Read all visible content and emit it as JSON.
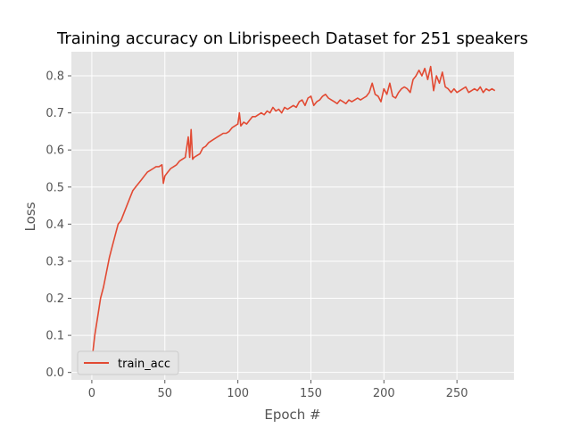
{
  "chart_data": {
    "type": "line",
    "title": "Training accuracy on Librispeech Dataset for 251 speakers",
    "xlabel": "Epoch #",
    "ylabel": "Loss",
    "xlim": [
      -14,
      289
    ],
    "ylim": [
      -0.02,
      0.865
    ],
    "xticks": [
      0,
      50,
      100,
      150,
      200,
      250
    ],
    "yticks": [
      0.0,
      0.1,
      0.2,
      0.3,
      0.4,
      0.5,
      0.6,
      0.7,
      0.8
    ],
    "ytick_labels": [
      "0.0",
      "0.1",
      "0.2",
      "0.3",
      "0.4",
      "0.5",
      "0.6",
      "0.7",
      "0.8"
    ],
    "grid": true,
    "legend_position": "lower-left",
    "colors": {
      "train_acc": "#e24a33",
      "background": "#e5e5e5",
      "grid": "#ffffff"
    },
    "series": [
      {
        "name": "train_acc",
        "x": [
          0,
          2,
          4,
          6,
          8,
          10,
          12,
          14,
          16,
          18,
          20,
          22,
          24,
          26,
          28,
          30,
          32,
          34,
          36,
          38,
          40,
          42,
          44,
          46,
          48,
          49,
          50,
          52,
          54,
          56,
          58,
          60,
          62,
          64,
          66,
          67,
          68,
          69,
          70,
          72,
          74,
          76,
          78,
          80,
          82,
          84,
          86,
          88,
          90,
          92,
          94,
          96,
          98,
          100,
          101,
          102,
          104,
          106,
          108,
          110,
          112,
          114,
          116,
          118,
          120,
          122,
          124,
          126,
          128,
          130,
          132,
          134,
          136,
          138,
          140,
          142,
          144,
          146,
          148,
          150,
          152,
          154,
          156,
          158,
          160,
          162,
          164,
          166,
          168,
          170,
          172,
          174,
          176,
          178,
          180,
          182,
          184,
          186,
          188,
          190,
          192,
          194,
          196,
          198,
          200,
          202,
          204,
          206,
          208,
          210,
          212,
          214,
          216,
          218,
          220,
          222,
          224,
          226,
          228,
          230,
          232,
          234,
          236,
          238,
          240,
          242,
          244,
          246,
          248,
          250,
          252,
          254,
          256,
          258,
          260,
          262,
          264,
          266,
          268,
          270,
          272,
          274,
          276
        ],
        "values": [
          0.03,
          0.1,
          0.15,
          0.2,
          0.23,
          0.27,
          0.31,
          0.34,
          0.37,
          0.4,
          0.41,
          0.43,
          0.45,
          0.47,
          0.49,
          0.5,
          0.51,
          0.52,
          0.53,
          0.54,
          0.545,
          0.55,
          0.555,
          0.555,
          0.56,
          0.51,
          0.53,
          0.54,
          0.55,
          0.555,
          0.56,
          0.57,
          0.575,
          0.58,
          0.635,
          0.58,
          0.655,
          0.575,
          0.58,
          0.585,
          0.59,
          0.605,
          0.61,
          0.62,
          0.625,
          0.63,
          0.635,
          0.64,
          0.645,
          0.645,
          0.65,
          0.66,
          0.665,
          0.67,
          0.7,
          0.665,
          0.675,
          0.67,
          0.68,
          0.69,
          0.69,
          0.695,
          0.7,
          0.695,
          0.705,
          0.7,
          0.715,
          0.705,
          0.71,
          0.7,
          0.715,
          0.71,
          0.715,
          0.72,
          0.715,
          0.73,
          0.735,
          0.72,
          0.74,
          0.745,
          0.72,
          0.73,
          0.735,
          0.745,
          0.75,
          0.74,
          0.735,
          0.73,
          0.725,
          0.735,
          0.73,
          0.725,
          0.735,
          0.73,
          0.735,
          0.74,
          0.735,
          0.74,
          0.745,
          0.755,
          0.78,
          0.75,
          0.745,
          0.73,
          0.765,
          0.75,
          0.78,
          0.745,
          0.74,
          0.755,
          0.765,
          0.77,
          0.765,
          0.755,
          0.79,
          0.8,
          0.815,
          0.8,
          0.82,
          0.79,
          0.825,
          0.76,
          0.8,
          0.78,
          0.81,
          0.77,
          0.765,
          0.755,
          0.765,
          0.755,
          0.76,
          0.765,
          0.77,
          0.755,
          0.76,
          0.765,
          0.76,
          0.77,
          0.755,
          0.765,
          0.76,
          0.765,
          0.76
        ]
      }
    ]
  }
}
